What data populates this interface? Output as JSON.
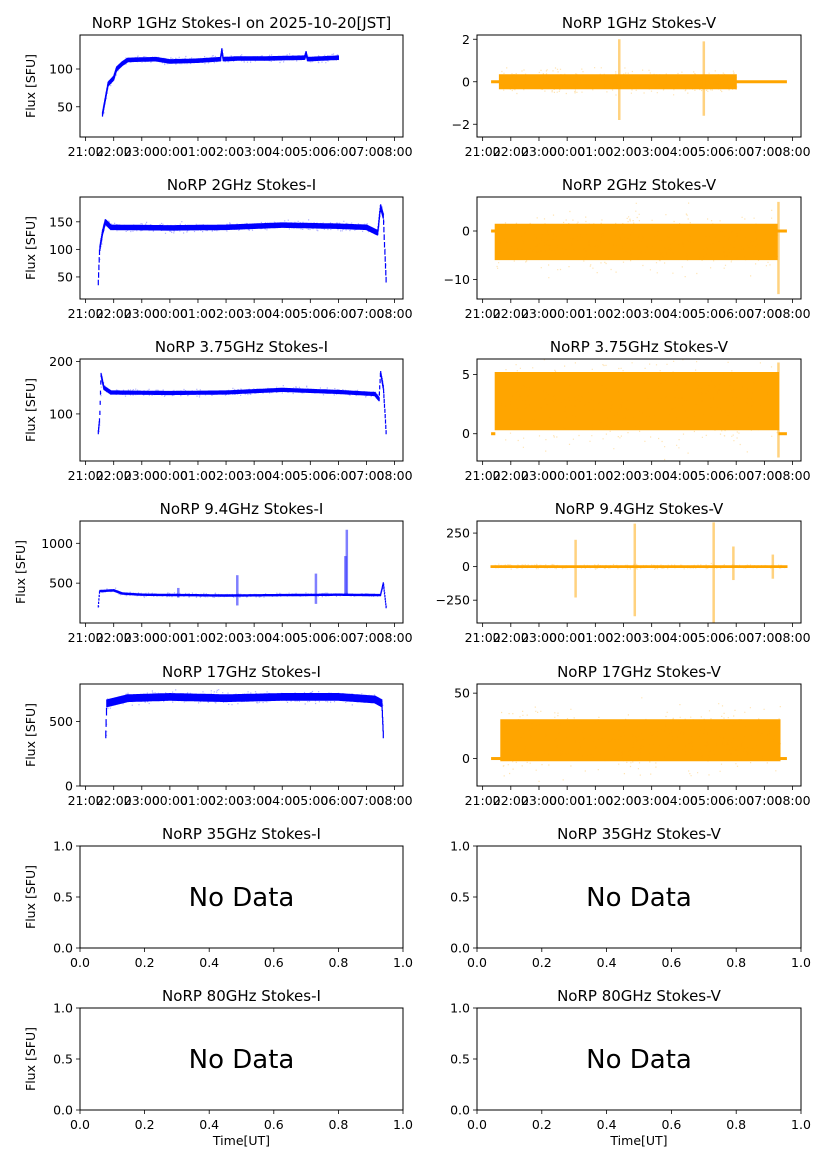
{
  "figure": {
    "time_ticks": [
      "21:00",
      "22:00",
      "23:00",
      "00:00",
      "01:00",
      "02:00",
      "03:00",
      "04:00",
      "05:00",
      "06:00",
      "07:00",
      "08:00"
    ],
    "xlabel_bottom": "Time[UT]",
    "ylabel": "Flux [SFU]",
    "no_data_text": "No Data",
    "colors": {
      "stokes_i": "#0000ff",
      "stokes_v": "#ffa500"
    }
  },
  "chart_data": [
    {
      "id": "1GHz-I",
      "type": "scatter",
      "title": "NoRP 1GHz Stokes-I on 2025-10-20[JST]",
      "ylabel": "Flux [SFU]",
      "ylim": [
        10,
        145
      ],
      "yticks": [
        50,
        100
      ],
      "xlim_hours": [
        -0.2,
        11.3
      ],
      "has_data": true,
      "profile": [
        [
          0.6,
          40
        ],
        [
          0.7,
          60
        ],
        [
          0.8,
          80
        ],
        [
          1.0,
          88
        ],
        [
          1.1,
          100
        ],
        [
          1.3,
          107
        ],
        [
          1.5,
          112
        ],
        [
          2.5,
          113
        ],
        [
          3.0,
          110
        ],
        [
          4.0,
          111
        ],
        [
          4.8,
          113
        ],
        [
          4.85,
          125
        ],
        [
          4.9,
          113
        ],
        [
          5.5,
          114
        ],
        [
          6.5,
          114
        ],
        [
          7.8,
          115
        ],
        [
          7.85,
          121
        ],
        [
          7.9,
          113
        ],
        [
          9.0,
          115
        ]
      ],
      "spread": 3,
      "start": 0.6,
      "end": 9.0
    },
    {
      "id": "1GHz-V",
      "type": "scatter",
      "title": "NoRP 1GHz Stokes-V",
      "ylabel": "",
      "ylim": [
        -2.6,
        2.2
      ],
      "yticks": [
        -2,
        0,
        2
      ],
      "xlim_hours": [
        -0.2,
        11.3
      ],
      "has_data": true,
      "profile": [
        [
          0.3,
          0
        ],
        [
          10.8,
          0
        ]
      ],
      "spread": 0.35,
      "start": 0.6,
      "end": 9.0,
      "flat_before": 0.3,
      "flat_after": 10.8,
      "spikes": [
        [
          4.85,
          2.0,
          -1.8
        ],
        [
          7.85,
          1.9,
          -1.6
        ]
      ]
    },
    {
      "id": "2GHz-I",
      "type": "scatter",
      "title": "NoRP 2GHz Stokes-I",
      "ylabel": "Flux [SFU]",
      "ylim": [
        10,
        195
      ],
      "yticks": [
        50,
        100,
        150
      ],
      "xlim_hours": [
        -0.2,
        11.3
      ],
      "has_data": true,
      "profile": [
        [
          0.45,
          40
        ],
        [
          0.5,
          100
        ],
        [
          0.6,
          130
        ],
        [
          0.7,
          150
        ],
        [
          0.9,
          140
        ],
        [
          3.0,
          139
        ],
        [
          5.0,
          140
        ],
        [
          7.0,
          144
        ],
        [
          9.0,
          142
        ],
        [
          10.0,
          140
        ],
        [
          10.4,
          130
        ],
        [
          10.5,
          178
        ],
        [
          10.6,
          160
        ],
        [
          10.65,
          100
        ],
        [
          10.7,
          45
        ]
      ],
      "spread": 5,
      "start": 0.45,
      "end": 10.7
    },
    {
      "id": "2GHz-V",
      "type": "scatter",
      "title": "NoRP 2GHz Stokes-V",
      "ylabel": "",
      "ylim": [
        -14,
        7
      ],
      "yticks": [
        -10,
        0
      ],
      "xlim_hours": [
        -0.2,
        11.3
      ],
      "has_data": true,
      "profile": [
        [
          0.45,
          -2
        ],
        [
          10.4,
          -2
        ]
      ],
      "spread": 3.5,
      "start": 0.45,
      "end": 10.45,
      "flat_before": 0.3,
      "flat_after": 10.8,
      "band_min": -6,
      "band_max": 1.5,
      "spikes": [
        [
          10.5,
          6,
          -13
        ]
      ]
    },
    {
      "id": "3.75GHz-I",
      "type": "scatter",
      "title": "NoRP 3.75GHz Stokes-I",
      "ylabel": "Flux [SFU]",
      "ylim": [
        10,
        205
      ],
      "yticks": [
        100,
        200
      ],
      "xlim_hours": [
        -0.2,
        11.3
      ],
      "has_data": true,
      "profile": [
        [
          0.45,
          65
        ],
        [
          0.5,
          90
        ],
        [
          0.55,
          175
        ],
        [
          0.65,
          150
        ],
        [
          0.9,
          141
        ],
        [
          3.0,
          140
        ],
        [
          5.0,
          141
        ],
        [
          7.0,
          146
        ],
        [
          9.0,
          142
        ],
        [
          10.3,
          138
        ],
        [
          10.45,
          128
        ],
        [
          10.5,
          180
        ],
        [
          10.6,
          150
        ],
        [
          10.65,
          110
        ],
        [
          10.7,
          65
        ]
      ],
      "spread": 4,
      "start": 0.45,
      "end": 10.7
    },
    {
      "id": "3.75GHz-V",
      "type": "scatter",
      "title": "NoRP 3.75GHz Stokes-V",
      "ylabel": "",
      "ylim": [
        -2.3,
        6.3
      ],
      "yticks": [
        0,
        5
      ],
      "xlim_hours": [
        -0.2,
        11.3
      ],
      "has_data": true,
      "profile": [
        [
          0.45,
          2.7
        ],
        [
          10.5,
          2.7
        ]
      ],
      "spread": 2.0,
      "start": 0.45,
      "end": 10.5,
      "flat_before": 0.3,
      "flat_after": 10.8,
      "band_min": 0.3,
      "band_max": 5.2,
      "spikes": [
        [
          10.5,
          6,
          -2
        ]
      ]
    },
    {
      "id": "9.4GHz-I",
      "type": "scatter",
      "title": "NoRP 9.4GHz Stokes-I",
      "ylabel": "Flux [SFU]",
      "ylim": [
        0,
        1280
      ],
      "yticks": [
        500,
        1000
      ],
      "xlim_hours": [
        -0.2,
        11.3
      ],
      "has_data": true,
      "profile": [
        [
          0.45,
          210
        ],
        [
          0.5,
          400
        ],
        [
          1.0,
          410
        ],
        [
          1.3,
          370
        ],
        [
          2.0,
          355
        ],
        [
          5.0,
          345
        ],
        [
          7.0,
          350
        ],
        [
          9.0,
          355
        ],
        [
          10.5,
          350
        ],
        [
          10.6,
          500
        ],
        [
          10.7,
          200
        ]
      ],
      "spread": 15,
      "start": 0.45,
      "end": 10.7,
      "spikes": [
        [
          3.3,
          440,
          320
        ],
        [
          5.4,
          600,
          220
        ],
        [
          8.2,
          620,
          240
        ],
        [
          9.3,
          1170,
          340
        ],
        [
          9.25,
          840,
          340
        ]
      ]
    },
    {
      "id": "9.4GHz-V",
      "type": "scatter",
      "title": "NoRP 9.4GHz Stokes-V",
      "ylabel": "",
      "ylim": [
        -420,
        340
      ],
      "yticks": [
        -250,
        0,
        250
      ],
      "xlim_hours": [
        -0.2,
        11.3
      ],
      "has_data": true,
      "profile": [
        [
          0.3,
          0
        ],
        [
          10.8,
          0
        ]
      ],
      "spread": 10,
      "start": 0.3,
      "end": 10.8,
      "spikes": [
        [
          3.3,
          200,
          -230
        ],
        [
          5.4,
          320,
          -370
        ],
        [
          8.2,
          330,
          -420
        ],
        [
          10.3,
          90,
          -90
        ],
        [
          8.9,
          150,
          -100
        ]
      ]
    },
    {
      "id": "17GHz-I",
      "type": "scatter",
      "title": "NoRP 17GHz Stokes-I",
      "ylabel": "Flux [SFU]",
      "ylim": [
        0,
        790
      ],
      "yticks": [
        0,
        500
      ],
      "xlim_hours": [
        -0.2,
        11.3
      ],
      "has_data": true,
      "profile": [
        [
          0.72,
          400
        ],
        [
          0.75,
          640
        ],
        [
          1.5,
          680
        ],
        [
          3.0,
          690
        ],
        [
          5.0,
          680
        ],
        [
          7.0,
          690
        ],
        [
          9.0,
          690
        ],
        [
          10.3,
          670
        ],
        [
          10.55,
          640
        ],
        [
          10.6,
          400
        ]
      ],
      "spread": 30,
      "start": 0.72,
      "end": 10.6
    },
    {
      "id": "17GHz-V",
      "type": "scatter",
      "title": "NoRP 17GHz Stokes-V",
      "ylabel": "",
      "ylim": [
        -21,
        57
      ],
      "yticks": [
        0,
        50
      ],
      "xlim_hours": [
        -0.2,
        11.3
      ],
      "has_data": true,
      "profile": [
        [
          0.65,
          14
        ],
        [
          10.55,
          14
        ]
      ],
      "spread": 16,
      "start": 0.65,
      "end": 10.55,
      "flat_before": 0.3,
      "flat_after": 10.8
    },
    {
      "id": "35GHz-I",
      "type": "none",
      "title": "NoRP 35GHz Stokes-I",
      "ylabel": "Flux [SFU]",
      "ylim": [
        0,
        1
      ],
      "xlim": [
        0,
        1
      ],
      "yticks": [
        "0.0",
        "0.5",
        "1.0"
      ],
      "xticks": [
        "0.0",
        "0.2",
        "0.4",
        "0.6",
        "0.8",
        "1.0"
      ],
      "has_data": false,
      "annotation": "No Data"
    },
    {
      "id": "35GHz-V",
      "type": "none",
      "title": "NoRP 35GHz Stokes-V",
      "ylabel": "",
      "ylim": [
        0,
        1
      ],
      "xlim": [
        0,
        1
      ],
      "yticks": [
        "0.0",
        "0.5",
        "1.0"
      ],
      "xticks": [
        "0.0",
        "0.2",
        "0.4",
        "0.6",
        "0.8",
        "1.0"
      ],
      "has_data": false,
      "annotation": "No Data"
    },
    {
      "id": "80GHz-I",
      "type": "none",
      "title": "NoRP 80GHz Stokes-I",
      "ylabel": "Flux [SFU]",
      "xlabel": "Time[UT]",
      "ylim": [
        0,
        1
      ],
      "xlim": [
        0,
        1
      ],
      "yticks": [
        "0.0",
        "0.5",
        "1.0"
      ],
      "xticks": [
        "0.0",
        "0.2",
        "0.4",
        "0.6",
        "0.8",
        "1.0"
      ],
      "has_data": false,
      "annotation": "No Data"
    },
    {
      "id": "80GHz-V",
      "type": "none",
      "title": "NoRP 80GHz Stokes-V",
      "ylabel": "",
      "xlabel": "Time[UT]",
      "ylim": [
        0,
        1
      ],
      "xlim": [
        0,
        1
      ],
      "yticks": [
        "0.0",
        "0.5",
        "1.0"
      ],
      "xticks": [
        "0.0",
        "0.2",
        "0.4",
        "0.6",
        "0.8",
        "1.0"
      ],
      "has_data": false,
      "annotation": "No Data"
    }
  ]
}
